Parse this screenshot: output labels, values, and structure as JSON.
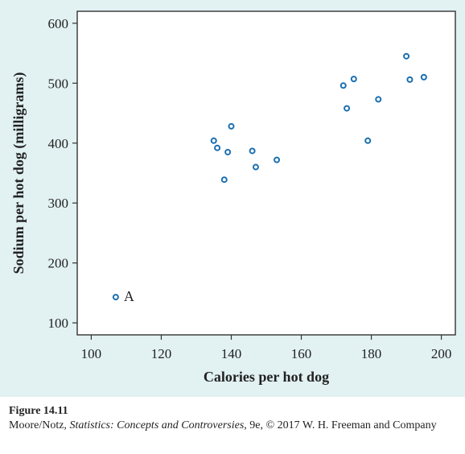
{
  "chart_data": {
    "type": "scatter",
    "title": "",
    "xlabel": "Calories per hot dog",
    "ylabel": "Sodium per hot dog (milligrams)",
    "xlim": [
      96,
      204
    ],
    "ylim": [
      80,
      620
    ],
    "xticks": [
      100,
      120,
      140,
      160,
      180,
      200
    ],
    "yticks": [
      100,
      200,
      300,
      400,
      500,
      600
    ],
    "grid": false,
    "marker_color": "#1a6fb0",
    "points": [
      {
        "x": 107,
        "y": 143
      },
      {
        "x": 135,
        "y": 404
      },
      {
        "x": 136,
        "y": 392
      },
      {
        "x": 138,
        "y": 339
      },
      {
        "x": 139,
        "y": 385
      },
      {
        "x": 140,
        "y": 428
      },
      {
        "x": 146,
        "y": 387
      },
      {
        "x": 147,
        "y": 360
      },
      {
        "x": 153,
        "y": 372
      },
      {
        "x": 172,
        "y": 496
      },
      {
        "x": 173,
        "y": 458
      },
      {
        "x": 175,
        "y": 507
      },
      {
        "x": 179,
        "y": 404
      },
      {
        "x": 182,
        "y": 473
      },
      {
        "x": 190,
        "y": 545
      },
      {
        "x": 191,
        "y": 506
      },
      {
        "x": 195,
        "y": 510
      }
    ],
    "annotations": [
      {
        "text": "A",
        "x": 107,
        "y": 143
      }
    ]
  },
  "caption": {
    "title": "Figure 14.11",
    "line_prefix": "Moore/Notz, ",
    "book_title": "Statistics: Concepts and Controversies",
    "line_suffix": ", 9e, © 2017 W. H. Freeman and Company"
  }
}
